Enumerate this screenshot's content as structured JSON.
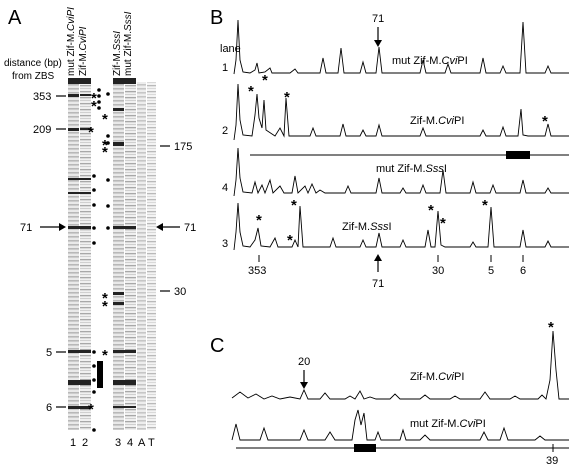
{
  "panel_a": {
    "label": "A",
    "distance_caption": [
      "distance (bp)",
      "from ZBS"
    ],
    "lane_headers": [
      "mut Zif-M.",
      "CviPI",
      "Zif-M.",
      "CviPI",
      "Zif-M.",
      "SssI",
      "mut Zif-M.",
      "SssI"
    ],
    "left_markers": [
      "353",
      "209",
      "71",
      "5",
      "6"
    ],
    "right_markers": [
      "175",
      "71",
      "30"
    ],
    "lane_numbers": [
      "1",
      "2",
      "3",
      "4",
      "A",
      "T"
    ]
  },
  "panel_b": {
    "label": "B",
    "lane_header": "lane",
    "arrow_label": "71",
    "traces": [
      {
        "lane": "1",
        "name_prefix": "mut Zif-M.",
        "name_italic": "Cvi",
        "name_suffix": "PI"
      },
      {
        "lane": "2",
        "name_prefix": "Zif-M.",
        "name_italic": "Cvi",
        "name_suffix": "PI"
      },
      {
        "lane": "4",
        "name_prefix": "mut Zif-M.",
        "name_italic": "Sss",
        "name_suffix": "I"
      },
      {
        "lane": "3",
        "name_prefix": "Zif-M.",
        "name_italic": "Sss",
        "name_suffix": "I"
      }
    ],
    "bottom_ticks": [
      "353",
      "71",
      "30",
      "5",
      "6"
    ]
  },
  "panel_c": {
    "label": "C",
    "arrow_label": "20",
    "traces": [
      {
        "name_prefix": "Zif-M.",
        "name_italic": "Cvi",
        "name_suffix": "PI"
      },
      {
        "name_prefix": "mut Zif-M.",
        "name_italic": "Cvi",
        "name_suffix": "PI"
      }
    ],
    "bottom_tick": "39"
  }
}
